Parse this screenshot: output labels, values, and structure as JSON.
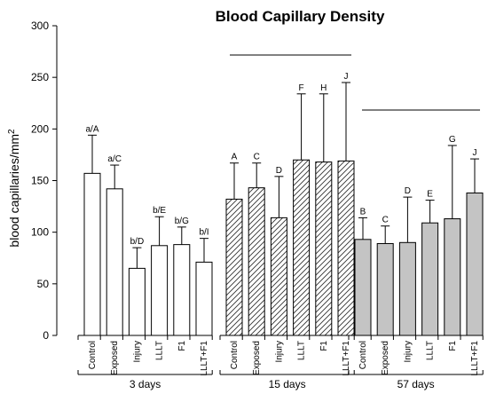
{
  "chart_data": {
    "type": "bar",
    "title": "Blood Capillary Density",
    "ylabel_main": "blood capillaries/mm",
    "ylabel_sup": "2",
    "ylim": [
      0,
      300
    ],
    "yticks": [
      "0",
      "50",
      "100",
      "150",
      "200",
      "250",
      "300"
    ],
    "grid": false,
    "groups": [
      {
        "name": "3 days",
        "fill": "white",
        "categories": [
          "Control",
          "Exposed",
          "Injury",
          "LLLT",
          "F1",
          "LLLT+F1"
        ],
        "values": [
          157,
          142,
          65,
          87,
          88,
          71
        ],
        "errors": [
          37,
          23,
          20,
          28,
          17,
          23
        ],
        "labels": [
          "a/A",
          "a/C",
          "b/D",
          "b/E",
          "b/G",
          "b/I"
        ]
      },
      {
        "name": "15 days",
        "fill": "hatched",
        "categories": [
          "Control",
          "Exposed",
          "Injury",
          "LLLT",
          "F1",
          "LLLT+F1"
        ],
        "values": [
          132,
          143,
          114,
          170,
          168,
          169
        ],
        "errors": [
          35,
          24,
          40,
          64,
          66,
          76
        ],
        "labels": [
          "A",
          "C",
          "D",
          "F",
          "H",
          "J"
        ]
      },
      {
        "name": "57 days",
        "fill": "gray",
        "categories": [
          "Control",
          "Exposed",
          "Injury",
          "LLLT",
          "F1",
          "LLLT+F1"
        ],
        "values": [
          93,
          89,
          90,
          109,
          113,
          138
        ],
        "errors": [
          21,
          17,
          44,
          22,
          71,
          33
        ],
        "labels": [
          "B",
          "C",
          "D",
          "E",
          "G",
          "J"
        ]
      }
    ]
  }
}
